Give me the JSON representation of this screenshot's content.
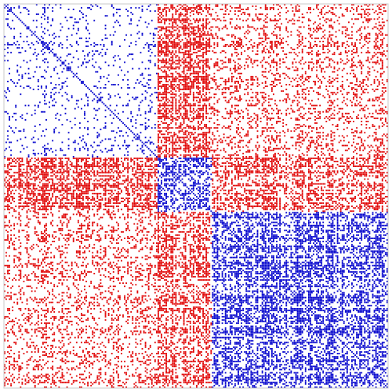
{
  "chart_data": {
    "type": "heatmap",
    "title": "",
    "xlabel": "",
    "ylabel": "",
    "n": 240,
    "symmetric": true,
    "grid": false,
    "legend": "none",
    "colors": {
      "positive": "#e00000",
      "negative": "#0000cc",
      "frame": "#c8c8c8",
      "background": "#ffffff"
    },
    "blocks": [
      {
        "name": "A",
        "start": 0,
        "end": 96
      },
      {
        "name": "B",
        "start": 96,
        "end": 130
      },
      {
        "name": "C",
        "start": 130,
        "end": 240
      }
    ],
    "block_patterns": [
      {
        "pair": [
          "A",
          "A"
        ],
        "sign": "negative",
        "density": 0.11
      },
      {
        "pair": [
          "A",
          "B"
        ],
        "sign": "positive",
        "density": 0.55
      },
      {
        "pair": [
          "A",
          "C"
        ],
        "sign": "positive",
        "density": 0.22
      },
      {
        "pair": [
          "B",
          "B"
        ],
        "sign": "negative",
        "density": 0.45
      },
      {
        "pair": [
          "B",
          "C"
        ],
        "sign": "positive",
        "density": 0.42
      },
      {
        "pair": [
          "C",
          "C"
        ],
        "sign": "negative",
        "density": 0.42
      }
    ]
  }
}
